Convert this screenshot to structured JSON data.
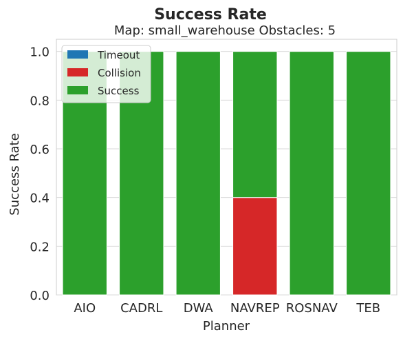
{
  "chart_data": {
    "type": "bar",
    "stacked": true,
    "title": "Success Rate",
    "subtitle": "Map: small_warehouse Obstacles: 5",
    "xlabel": "Planner",
    "ylabel": "Success Rate",
    "categories": [
      "AIO",
      "CADRL",
      "DWA",
      "NAVREP",
      "ROSNAV",
      "TEB"
    ],
    "ylim": [
      0,
      1.05
    ],
    "yticks": [
      "0.0",
      "0.2",
      "0.4",
      "0.6",
      "0.8",
      "1.0"
    ],
    "grid": true,
    "legend_position": "top-left",
    "series": [
      {
        "name": "Timeout",
        "color": "#1f77b4",
        "values": [
          0,
          0,
          0,
          0,
          0,
          0
        ]
      },
      {
        "name": "Collision",
        "color": "#d62728",
        "values": [
          0,
          0,
          0,
          0.4,
          0,
          0
        ]
      },
      {
        "name": "Success",
        "color": "#2ca02c",
        "values": [
          1.0,
          1.0,
          1.0,
          0.6,
          1.0,
          1.0
        ]
      }
    ]
  }
}
